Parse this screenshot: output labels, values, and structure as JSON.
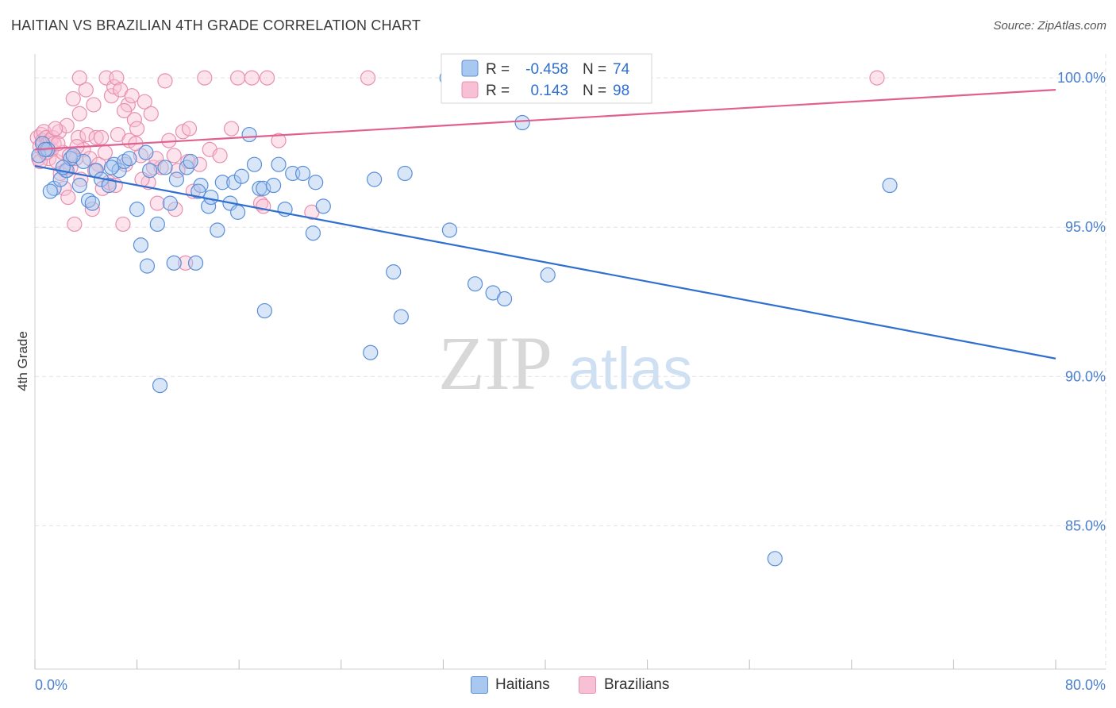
{
  "title": "HAITIAN VS BRAZILIAN 4TH GRADE CORRELATION CHART",
  "source": "Source: ZipAtlas.com",
  "watermark": {
    "zip": "ZIP",
    "atlas": "atlas"
  },
  "colors": {
    "haitians_fill": "#a8c8f0",
    "haitians_stroke": "#5a8fd8",
    "haitians_line": "#2f6fd0",
    "brazilians_fill": "#f8c0d4",
    "brazilians_stroke": "#e890b0",
    "brazilians_line": "#e06090",
    "tick": "#4a7fd0",
    "grid": "#e2e2e2"
  },
  "legend": {
    "rows": [
      {
        "r_label": "R =",
        "r_value": "-0.458",
        "n_label": "N =",
        "n_value": "74"
      },
      {
        "r_label": "R =",
        "r_value": "0.143",
        "n_label": "N =",
        "n_value": "98"
      }
    ]
  },
  "bottom_legend": {
    "haitians": "Haitians",
    "brazilians": "Brazilians"
  },
  "chart_data": {
    "type": "scatter",
    "title": "HAITIAN VS BRAZILIAN 4TH GRADE CORRELATION CHART",
    "xlabel": "",
    "ylabel": "4th Grade",
    "xlim": [
      0,
      80
    ],
    "ylim": [
      80.2,
      100.8
    ],
    "x_tick_labels": [
      "0.0%",
      "80.0%"
    ],
    "y_ticks": [
      85,
      90,
      95,
      100
    ],
    "y_tick_labels": [
      "85.0%",
      "90.0%",
      "95.0%",
      "100.0%"
    ],
    "grid": true,
    "legend_position": "top-center",
    "series": [
      {
        "name": "Haitians",
        "r": -0.458,
        "n": 74,
        "trend": {
          "x": [
            0,
            80
          ],
          "y": [
            97.05,
            90.6
          ]
        },
        "points": [
          [
            0.3,
            97.4
          ],
          [
            0.6,
            97.8
          ],
          [
            1.0,
            97.6
          ],
          [
            1.5,
            96.3
          ],
          [
            2.0,
            96.6
          ],
          [
            2.5,
            96.9
          ],
          [
            2.8,
            97.3
          ],
          [
            3.5,
            96.4
          ],
          [
            3.8,
            97.2
          ],
          [
            4.2,
            95.9
          ],
          [
            4.8,
            96.9
          ],
          [
            5.2,
            96.6
          ],
          [
            5.8,
            96.4
          ],
          [
            6.2,
            97.1
          ],
          [
            6.6,
            96.9
          ],
          [
            7.0,
            97.2
          ],
          [
            7.4,
            97.3
          ],
          [
            8.0,
            95.6
          ],
          [
            8.3,
            94.4
          ],
          [
            8.7,
            97.5
          ],
          [
            8.8,
            93.7
          ],
          [
            9.0,
            96.9
          ],
          [
            9.6,
            95.1
          ],
          [
            9.8,
            89.7
          ],
          [
            10.2,
            97.0
          ],
          [
            10.6,
            95.8
          ],
          [
            10.9,
            93.8
          ],
          [
            11.1,
            96.6
          ],
          [
            11.9,
            97.0
          ],
          [
            12.2,
            97.2
          ],
          [
            12.6,
            93.8
          ],
          [
            13.0,
            96.4
          ],
          [
            13.6,
            95.7
          ],
          [
            13.8,
            96.0
          ],
          [
            14.3,
            94.9
          ],
          [
            14.7,
            96.5
          ],
          [
            15.3,
            95.8
          ],
          [
            15.6,
            96.5
          ],
          [
            15.9,
            95.5
          ],
          [
            16.2,
            96.7
          ],
          [
            16.8,
            98.1
          ],
          [
            17.2,
            97.1
          ],
          [
            17.6,
            96.3
          ],
          [
            17.9,
            96.3
          ],
          [
            18.0,
            92.2
          ],
          [
            18.7,
            96.4
          ],
          [
            19.1,
            97.1
          ],
          [
            19.6,
            95.6
          ],
          [
            20.2,
            96.8
          ],
          [
            21.0,
            96.8
          ],
          [
            21.8,
            94.8
          ],
          [
            22.0,
            96.5
          ],
          [
            22.6,
            95.7
          ],
          [
            26.3,
            90.8
          ],
          [
            26.6,
            96.6
          ],
          [
            28.1,
            93.5
          ],
          [
            28.7,
            92.0
          ],
          [
            29.0,
            96.8
          ],
          [
            32.5,
            94.9
          ],
          [
            34.5,
            93.1
          ],
          [
            35.9,
            92.8
          ],
          [
            36.8,
            92.6
          ],
          [
            38.2,
            98.5
          ],
          [
            40.2,
            93.4
          ],
          [
            67.0,
            96.4
          ],
          [
            58.0,
            83.9
          ],
          [
            32.3,
            100.0
          ],
          [
            1.2,
            96.2
          ],
          [
            0.8,
            97.6
          ],
          [
            4.5,
            95.8
          ],
          [
            6.0,
            97.0
          ],
          [
            12.8,
            96.2
          ],
          [
            2.2,
            97.0
          ],
          [
            3.0,
            97.4
          ]
        ]
      },
      {
        "name": "Brazilians",
        "r": 0.143,
        "n": 98,
        "trend": {
          "x": [
            0,
            80
          ],
          "y": [
            97.6,
            99.6
          ]
        },
        "points": [
          [
            0.2,
            98.0
          ],
          [
            0.3,
            97.3
          ],
          [
            0.4,
            97.7
          ],
          [
            0.5,
            98.1
          ],
          [
            0.6,
            97.9
          ],
          [
            0.7,
            98.2
          ],
          [
            0.8,
            97.5
          ],
          [
            0.9,
            98.0
          ],
          [
            1.0,
            97.8
          ],
          [
            1.1,
            97.3
          ],
          [
            1.2,
            97.9
          ],
          [
            1.3,
            97.6
          ],
          [
            1.4,
            98.0
          ],
          [
            1.5,
            97.8
          ],
          [
            1.7,
            97.2
          ],
          [
            1.9,
            98.2
          ],
          [
            2.0,
            96.8
          ],
          [
            2.2,
            97.5
          ],
          [
            2.3,
            96.3
          ],
          [
            2.5,
            98.4
          ],
          [
            2.6,
            96.0
          ],
          [
            2.8,
            97.0
          ],
          [
            3.0,
            99.3
          ],
          [
            3.1,
            95.1
          ],
          [
            3.2,
            97.3
          ],
          [
            3.4,
            98.0
          ],
          [
            3.5,
            98.8
          ],
          [
            3.6,
            96.6
          ],
          [
            3.8,
            97.6
          ],
          [
            4.0,
            99.6
          ],
          [
            4.1,
            98.1
          ],
          [
            4.3,
            97.3
          ],
          [
            4.5,
            95.6
          ],
          [
            4.6,
            99.1
          ],
          [
            4.8,
            98.0
          ],
          [
            5.0,
            97.1
          ],
          [
            5.3,
            96.3
          ],
          [
            5.5,
            97.5
          ],
          [
            5.6,
            100.0
          ],
          [
            5.8,
            96.5
          ],
          [
            6.0,
            99.4
          ],
          [
            6.2,
            99.7
          ],
          [
            6.4,
            100.0
          ],
          [
            6.5,
            98.1
          ],
          [
            6.7,
            99.6
          ],
          [
            6.9,
            95.1
          ],
          [
            7.1,
            97.1
          ],
          [
            7.3,
            99.1
          ],
          [
            7.4,
            97.9
          ],
          [
            7.6,
            99.4
          ],
          [
            7.8,
            98.6
          ],
          [
            8.0,
            98.3
          ],
          [
            8.3,
            97.4
          ],
          [
            8.6,
            99.2
          ],
          [
            8.9,
            96.5
          ],
          [
            9.1,
            98.8
          ],
          [
            9.3,
            97.0
          ],
          [
            9.6,
            95.8
          ],
          [
            9.9,
            97.0
          ],
          [
            10.2,
            99.9
          ],
          [
            10.5,
            97.9
          ],
          [
            10.9,
            97.4
          ],
          [
            11.2,
            96.9
          ],
          [
            11.6,
            98.2
          ],
          [
            11.8,
            93.8
          ],
          [
            12.1,
            98.3
          ],
          [
            12.4,
            96.2
          ],
          [
            12.9,
            97.1
          ],
          [
            13.3,
            100.0
          ],
          [
            13.7,
            97.6
          ],
          [
            14.5,
            97.4
          ],
          [
            15.4,
            98.3
          ],
          [
            15.9,
            100.0
          ],
          [
            17.0,
            100.0
          ],
          [
            17.7,
            95.8
          ],
          [
            17.9,
            95.7
          ],
          [
            18.2,
            100.0
          ],
          [
            19.1,
            97.9
          ],
          [
            21.7,
            95.5
          ],
          [
            26.1,
            100.0
          ],
          [
            66.0,
            100.0
          ],
          [
            3.5,
            100.0
          ],
          [
            0.4,
            97.2
          ],
          [
            1.6,
            98.3
          ],
          [
            2.4,
            96.9
          ],
          [
            4.7,
            96.9
          ],
          [
            6.3,
            96.4
          ],
          [
            7.9,
            97.8
          ],
          [
            11.0,
            95.6
          ],
          [
            9.5,
            97.3
          ],
          [
            5.2,
            98.0
          ],
          [
            2.7,
            97.4
          ],
          [
            1.8,
            97.8
          ],
          [
            0.9,
            97.5
          ],
          [
            3.3,
            97.7
          ],
          [
            7.0,
            98.9
          ],
          [
            8.4,
            96.6
          ],
          [
            12.0,
            97.2
          ]
        ]
      }
    ]
  }
}
